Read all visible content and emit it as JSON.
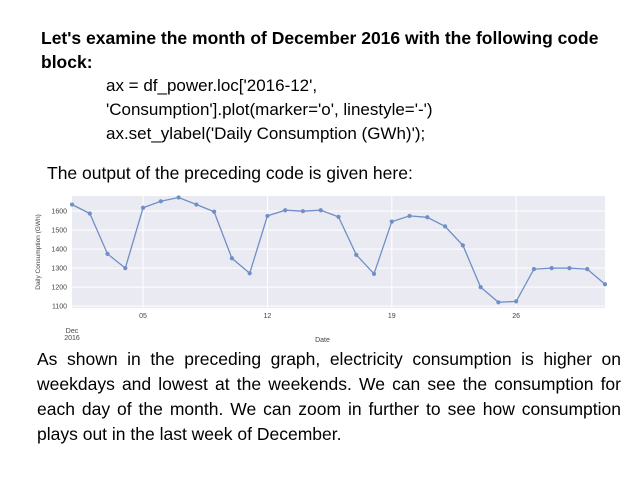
{
  "slide": {
    "heading": "Let's examine the month of December 2016 with the following code block:",
    "code_lines": [
      "ax = df_power.loc['2016-12',",
      "'Consumption'].plot(marker='o', linestyle='-')",
      "ax.set_ylabel('Daily Consumption (GWh)');"
    ],
    "intro": "The output of the preceding code is given here:",
    "paragraph": "As shown in the preceding graph, electricity consumption is higher on weekdays and lowest at the weekends. We can see the consumption for each day of the month. We can zoom in further to see how consumption plays out in the last week of December."
  },
  "chart_data": {
    "type": "line",
    "xlabel": "Date",
    "ylabel": "Daily Consumption (GWh)",
    "x_month_label": "Dec",
    "x_year_label": "2016",
    "x": [
      1,
      2,
      3,
      4,
      5,
      6,
      7,
      8,
      9,
      10,
      11,
      12,
      13,
      14,
      15,
      16,
      17,
      18,
      19,
      20,
      21,
      22,
      23,
      24,
      25,
      26,
      27,
      28,
      29,
      30,
      31
    ],
    "values": [
      1635,
      1588,
      1375,
      1300,
      1618,
      1652,
      1672,
      1635,
      1597,
      1352,
      1273,
      1575,
      1605,
      1600,
      1605,
      1570,
      1370,
      1270,
      1545,
      1575,
      1568,
      1520,
      1420,
      1200,
      1120,
      1125,
      1295,
      1300,
      1300,
      1295,
      1215
    ],
    "xticks": [
      5,
      12,
      19,
      26
    ],
    "xtick_labels": [
      "05",
      "12",
      "19",
      "26"
    ],
    "yticks": [
      1100,
      1200,
      1300,
      1400,
      1500,
      1600
    ],
    "ytick_labels": [
      "1100",
      "1200",
      "1300",
      "1400",
      "1500",
      "1600"
    ],
    "ylim": [
      1090,
      1680
    ],
    "xlim": [
      1,
      31
    ],
    "grid": true,
    "line_color": "#6f8fc6",
    "background_color": "#eaeaf2",
    "marker": "o"
  }
}
